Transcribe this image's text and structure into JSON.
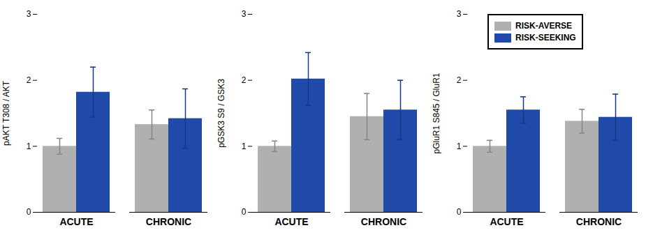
{
  "chart_data": [
    {
      "type": "bar",
      "ylabel": "pAKT T308 / AKT",
      "categories": [
        "ACUTE",
        "CHRONIC"
      ],
      "series": [
        {
          "name": "RISK-AVERSE",
          "color": "#b0b0b0",
          "values": [
            1.0,
            1.33
          ],
          "errors": [
            0.12,
            0.22
          ]
        },
        {
          "name": "RISK-SEEKING",
          "color": "#1f4aaa",
          "values": [
            1.82,
            1.42
          ],
          "errors": [
            0.38,
            0.45
          ]
        }
      ],
      "ylim": [
        0,
        3
      ],
      "yticks": [
        0,
        1,
        2,
        3
      ]
    },
    {
      "type": "bar",
      "ylabel": "pGSK3 S9 / GSK3",
      "categories": [
        "ACUTE",
        "CHRONIC"
      ],
      "series": [
        {
          "name": "RISK-AVERSE",
          "color": "#b0b0b0",
          "values": [
            1.0,
            1.45
          ],
          "errors": [
            0.08,
            0.35
          ]
        },
        {
          "name": "RISK-SEEKING",
          "color": "#1f4aaa",
          "values": [
            2.02,
            1.55
          ],
          "errors": [
            0.4,
            0.45
          ]
        }
      ],
      "ylim": [
        0,
        3
      ],
      "yticks": [
        0,
        1,
        2,
        3
      ]
    },
    {
      "type": "bar",
      "ylabel": "pGluR1 S845 / GluR1",
      "categories": [
        "ACUTE",
        "CHRONIC"
      ],
      "series": [
        {
          "name": "RISK-AVERSE",
          "color": "#b0b0b0",
          "values": [
            1.0,
            1.38
          ],
          "errors": [
            0.09,
            0.18
          ]
        },
        {
          "name": "RISK-SEEKING",
          "color": "#1f4aaa",
          "values": [
            1.55,
            1.44
          ],
          "errors": [
            0.2,
            0.35
          ]
        }
      ],
      "ylim": [
        0,
        3
      ],
      "yticks": [
        0,
        1,
        2,
        3
      ],
      "legend": "upper left"
    }
  ]
}
